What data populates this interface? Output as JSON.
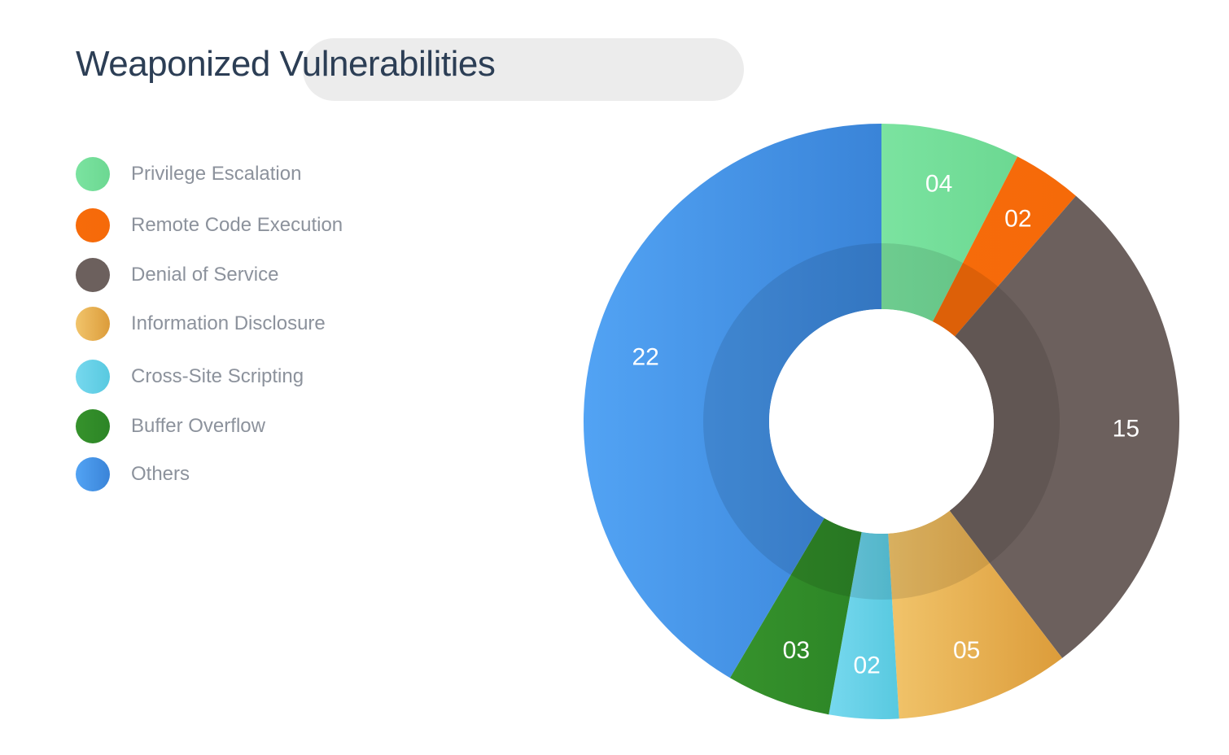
{
  "title": "Weaponized Vulnerabilities",
  "chart_data": {
    "type": "pie",
    "title": "Weaponized Vulnerabilities",
    "legend_position": "left",
    "categories": [
      "Privilege Escalation",
      "Remote Code Execution",
      "Denial of Service",
      "Information Disclosure",
      "Cross-Site Scripting",
      "Buffer Overflow",
      "Others"
    ],
    "values": [
      4,
      2,
      15,
      5,
      2,
      3,
      22
    ],
    "value_labels": [
      "04",
      "02",
      "15",
      "05",
      "02",
      "03",
      "22"
    ],
    "colors": [
      [
        "#7be3a0",
        "#6cd892"
      ],
      [
        "#f76b0a",
        "#f56a09"
      ],
      [
        "#6c605d",
        "#6c605d"
      ],
      [
        "#f1c46b",
        "#dc9c3a"
      ],
      [
        "#76d8ee",
        "#58c9e0"
      ],
      [
        "#36922c",
        "#2c8526"
      ],
      [
        "#52a3f4",
        "#3a84d8"
      ]
    ]
  }
}
